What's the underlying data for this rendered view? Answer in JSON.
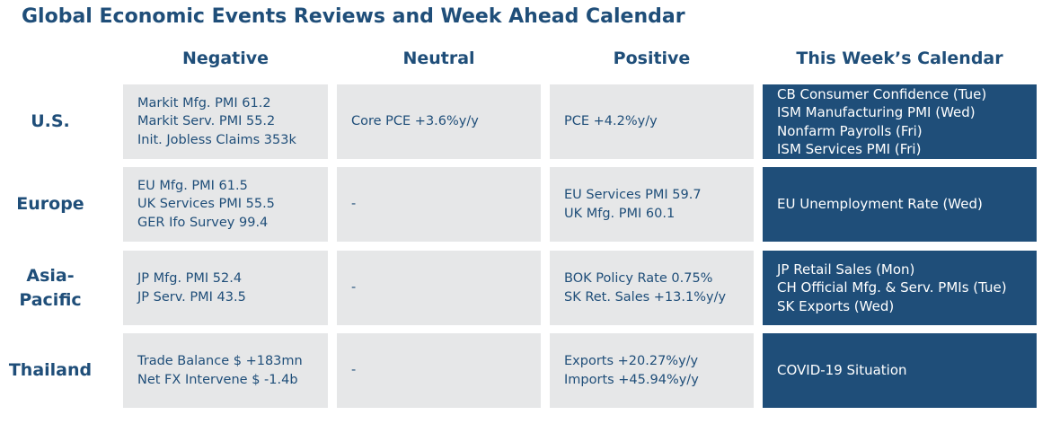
{
  "title": "Global Economic Events Reviews and Week Ahead Calendar",
  "columns": [
    "Negative",
    "Neutral",
    "Positive",
    "This Week’s Calendar"
  ],
  "rows": [
    {
      "region": "U.S.",
      "negative": [
        "Markit Mfg. PMI 61.2",
        "Markit Serv. PMI 55.2",
        "Init. Jobless Claims 353k"
      ],
      "neutral": [
        "Core PCE +3.6%y/y"
      ],
      "positive": [
        "PCE +4.2%y/y"
      ],
      "calendar": [
        "CB Consumer Confidence (Tue)",
        "ISM Manufacturing PMI (Wed)",
        "Nonfarm Payrolls (Fri)",
        "ISM Services PMI (Fri)"
      ]
    },
    {
      "region": "Europe",
      "negative": [
        "EU Mfg. PMI 61.5",
        "UK Services PMI 55.5",
        "GER Ifo Survey 99.4"
      ],
      "neutral": [
        "-"
      ],
      "positive": [
        "EU Services PMI 59.7",
        "UK Mfg. PMI 60.1"
      ],
      "calendar": [
        "EU Unemployment Rate (Wed)"
      ]
    },
    {
      "region": "Asia-Pacific",
      "region_lines": [
        "Asia-",
        "Pacific"
      ],
      "negative": [
        "JP Mfg. PMI 52.4",
        "JP Serv. PMI 43.5"
      ],
      "neutral": [
        "-"
      ],
      "positive": [
        "BOK Policy Rate 0.75%",
        "SK Ret. Sales +13.1%y/y"
      ],
      "calendar": [
        "JP Retail Sales (Mon)",
        "CH Official Mfg. & Serv. PMIs (Tue)",
        "SK Exports (Wed)"
      ]
    },
    {
      "region": "Thailand",
      "negative": [
        "Trade Balance $ +183mn",
        "Net FX Intervene $ -1.4b"
      ],
      "neutral": [
        "-"
      ],
      "positive": [
        "Exports +20.27%y/y",
        "Imports +45.94%y/y"
      ],
      "calendar": [
        "COVID-19 Situation"
      ]
    }
  ],
  "colors": {
    "accent": "#1f4e79",
    "cell_grey": "#e6e7e8",
    "calendar_text": "#ffffff"
  }
}
